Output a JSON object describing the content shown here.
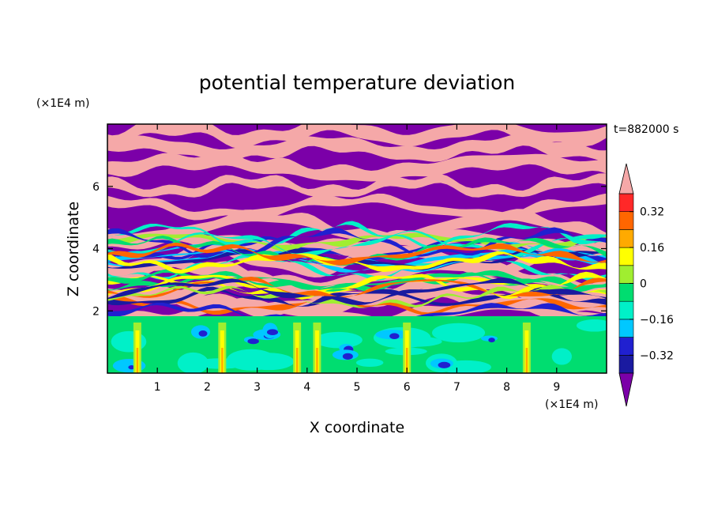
{
  "chart_data": {
    "type": "heatmap",
    "title": "potential temperature deviation",
    "time_label": "t=882000 s",
    "xlabel": "X coordinate",
    "ylabel": "Z coordinate",
    "x_unit": "(×1E4 m)",
    "y_unit": "(×1E4 m)",
    "xlim": [
      0,
      10
    ],
    "ylim": [
      0,
      8
    ],
    "x_ticks": [
      1,
      2,
      3,
      4,
      5,
      6,
      7,
      8,
      9
    ],
    "x_tick_labels": [
      "1",
      "2",
      "3",
      "4",
      "5",
      "6",
      "7",
      "8",
      "9"
    ],
    "y_ticks": [
      2,
      4,
      6
    ],
    "y_tick_labels": [
      "2",
      "4",
      "6"
    ],
    "colorbar": {
      "levels": [
        -0.4,
        -0.32,
        -0.24,
        -0.16,
        -0.08,
        0,
        0.08,
        0.16,
        0.24,
        0.32,
        0.4
      ],
      "tick_values": [
        0.32,
        0.16,
        0,
        -0.16,
        -0.32
      ],
      "tick_labels": [
        "0.32",
        "0.16",
        "0",
        "−0.16",
        "−0.32"
      ],
      "colors": [
        "#1a1aa0",
        "#2020d0",
        "#00c8ff",
        "#00f0c8",
        "#00dd70",
        "#a0ee30",
        "#ffff00",
        "#ffaa00",
        "#ff6600",
        "#ff2828"
      ],
      "under_color": "#7b00a8",
      "over_color": "#f5a8a8",
      "extend": "both"
    }
  }
}
